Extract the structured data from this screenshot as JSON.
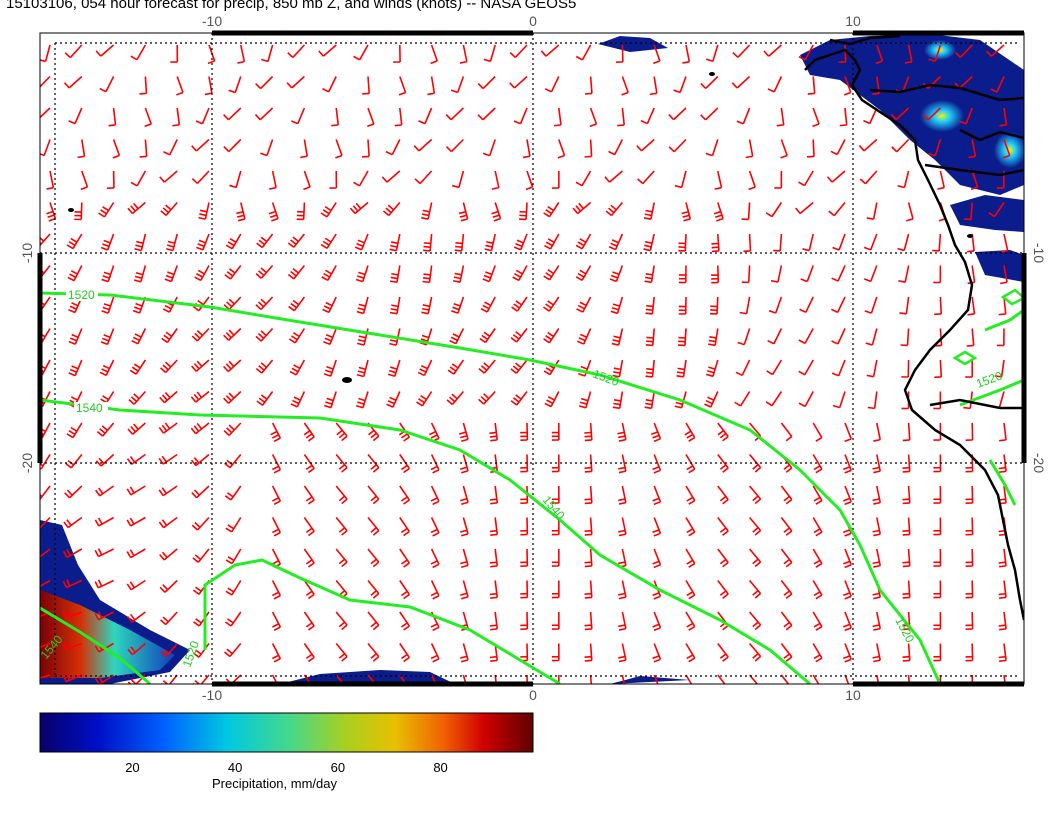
{
  "title": "15103106, 054 hour forecast for precip, 850 mb Z, and winds (knots) -- NASA GEOS5",
  "axes": {
    "lon_ticks": [
      -10,
      0,
      10
    ],
    "lat_ticks": [
      -10,
      -20
    ]
  },
  "contours": {
    "color": "#22ee22",
    "labels": [
      "1520",
      "1540",
      "1520",
      "1540",
      "1520",
      "1520",
      "1540",
      "1520"
    ]
  },
  "wind_barbs": {
    "color": "#ff0000",
    "unit": "knots"
  },
  "colorbar": {
    "label": "Precipitation, mm/day",
    "ticks": [
      20,
      40,
      60,
      80
    ],
    "min": 2,
    "max": 98
  },
  "colors": {
    "coast": "#000000",
    "precip_low": "#0b1d8c"
  }
}
